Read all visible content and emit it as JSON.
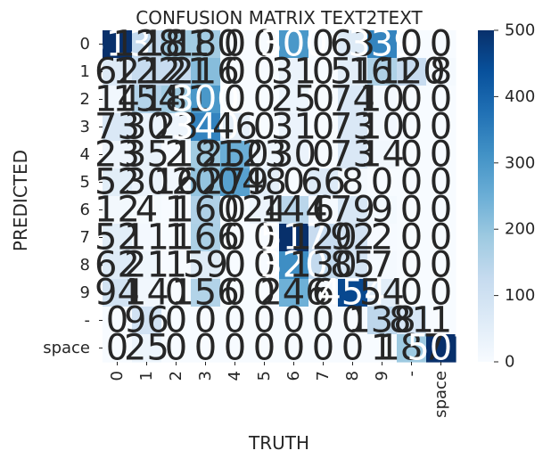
{
  "chart_data": {
    "type": "heatmap",
    "title": "CONFUSION MATRIX TEXT2TEXT",
    "xlabel": "TRUTH",
    "ylabel": "PREDICTED",
    "x_categories": [
      "0",
      "1",
      "2",
      "3",
      "4",
      "5",
      "6",
      "7",
      "8",
      "9",
      "-",
      "space"
    ],
    "y_categories": [
      "0",
      "1",
      "2",
      "3",
      "4",
      "5",
      "6",
      "7",
      "8",
      "9",
      "-",
      "space"
    ],
    "values": [
      [
        513,
        128,
        181,
        180,
        0,
        0,
        300,
        0,
        63,
        339,
        0,
        0
      ],
      [
        62,
        122,
        121,
        216,
        0,
        0,
        31,
        0,
        51,
        161,
        120,
        8
      ],
      [
        14,
        154,
        181,
        300,
        0,
        0,
        25,
        0,
        74,
        10,
        0,
        0
      ],
      [
        73,
        30,
        23,
        340,
        46,
        0,
        31,
        0,
        73,
        10,
        0,
        0
      ],
      [
        23,
        35,
        2,
        181,
        250,
        23,
        30,
        0,
        73,
        14,
        0,
        0
      ],
      [
        52,
        30,
        16,
        200,
        279,
        48,
        0,
        66,
        8,
        0,
        0,
        0
      ],
      [
        12,
        4,
        1,
        160,
        0,
        24,
        144,
        6,
        79,
        9,
        0,
        0
      ],
      [
        52,
        11,
        1,
        166,
        0,
        0,
        517,
        120,
        92,
        2,
        0,
        0
      ],
      [
        62,
        21,
        1,
        59,
        0,
        0,
        320,
        130,
        85,
        7,
        0,
        0
      ],
      [
        94,
        14,
        0,
        156,
        0,
        0,
        246,
        6,
        454,
        54,
        0,
        0
      ],
      [
        0,
        96,
        0,
        0,
        0,
        0,
        0,
        0,
        0,
        138,
        81,
        1
      ],
      [
        0,
        25,
        0,
        0,
        0,
        0,
        0,
        0,
        0,
        1,
        187,
        507
      ]
    ],
    "cell_labels": [
      [
        "513",
        "128",
        "181",
        "180",
        "0",
        "0",
        "300",
        "0",
        "63",
        "339",
        "0",
        "0"
      ],
      [
        "62",
        "122",
        "121",
        "216",
        "0",
        "0",
        "31",
        "0",
        "51",
        "161",
        "120",
        "8"
      ],
      [
        "14",
        "154",
        "181",
        "300",
        "0",
        "0",
        "25",
        "0",
        "74",
        "10",
        "0",
        "0"
      ],
      [
        "73",
        "30",
        "23",
        "340",
        "46",
        "0",
        "31",
        "0",
        "73",
        "10",
        "0",
        "0"
      ],
      [
        "23",
        "35",
        "2",
        "181",
        "250",
        "23",
        "30",
        "0",
        "73",
        "14",
        "0",
        "0"
      ],
      [
        "52",
        "30",
        "16",
        "200",
        "279",
        "48",
        "0",
        "66",
        "8",
        "0",
        "0",
        "0"
      ],
      [
        "12",
        "4",
        "1",
        "160",
        "0",
        "24",
        "144",
        "6",
        "79",
        "9",
        "0",
        "0"
      ],
      [
        "52",
        "11",
        "1",
        "166",
        "0",
        "0",
        "517",
        "120",
        "92",
        "2",
        "0",
        "0"
      ],
      [
        "62",
        "21",
        "1",
        "59",
        "0",
        "0",
        "320",
        "130",
        "85",
        "7",
        "0",
        "0"
      ],
      [
        "94",
        "14",
        "0",
        "156",
        "0",
        "0",
        "246",
        "6",
        "454",
        "54",
        "0",
        "0"
      ],
      [
        "0",
        "96",
        "0",
        "0",
        "0",
        "0",
        "0",
        "0",
        "0",
        "138",
        "81",
        "1"
      ],
      [
        "0",
        "25",
        "0",
        "0",
        "0",
        "0",
        "0",
        "0",
        "0",
        "1",
        "187",
        "507"
      ]
    ],
    "colorbar": {
      "min": 0,
      "max": 500,
      "ticks": [
        0,
        100,
        200,
        300,
        400,
        500
      ]
    },
    "colormap": [
      "#f7fbff",
      "#deebf7",
      "#c6dbef",
      "#9ecae1",
      "#6baed6",
      "#4292c6",
      "#2171b5",
      "#08519c",
      "#08306b"
    ],
    "annotation_color": "#262626"
  }
}
